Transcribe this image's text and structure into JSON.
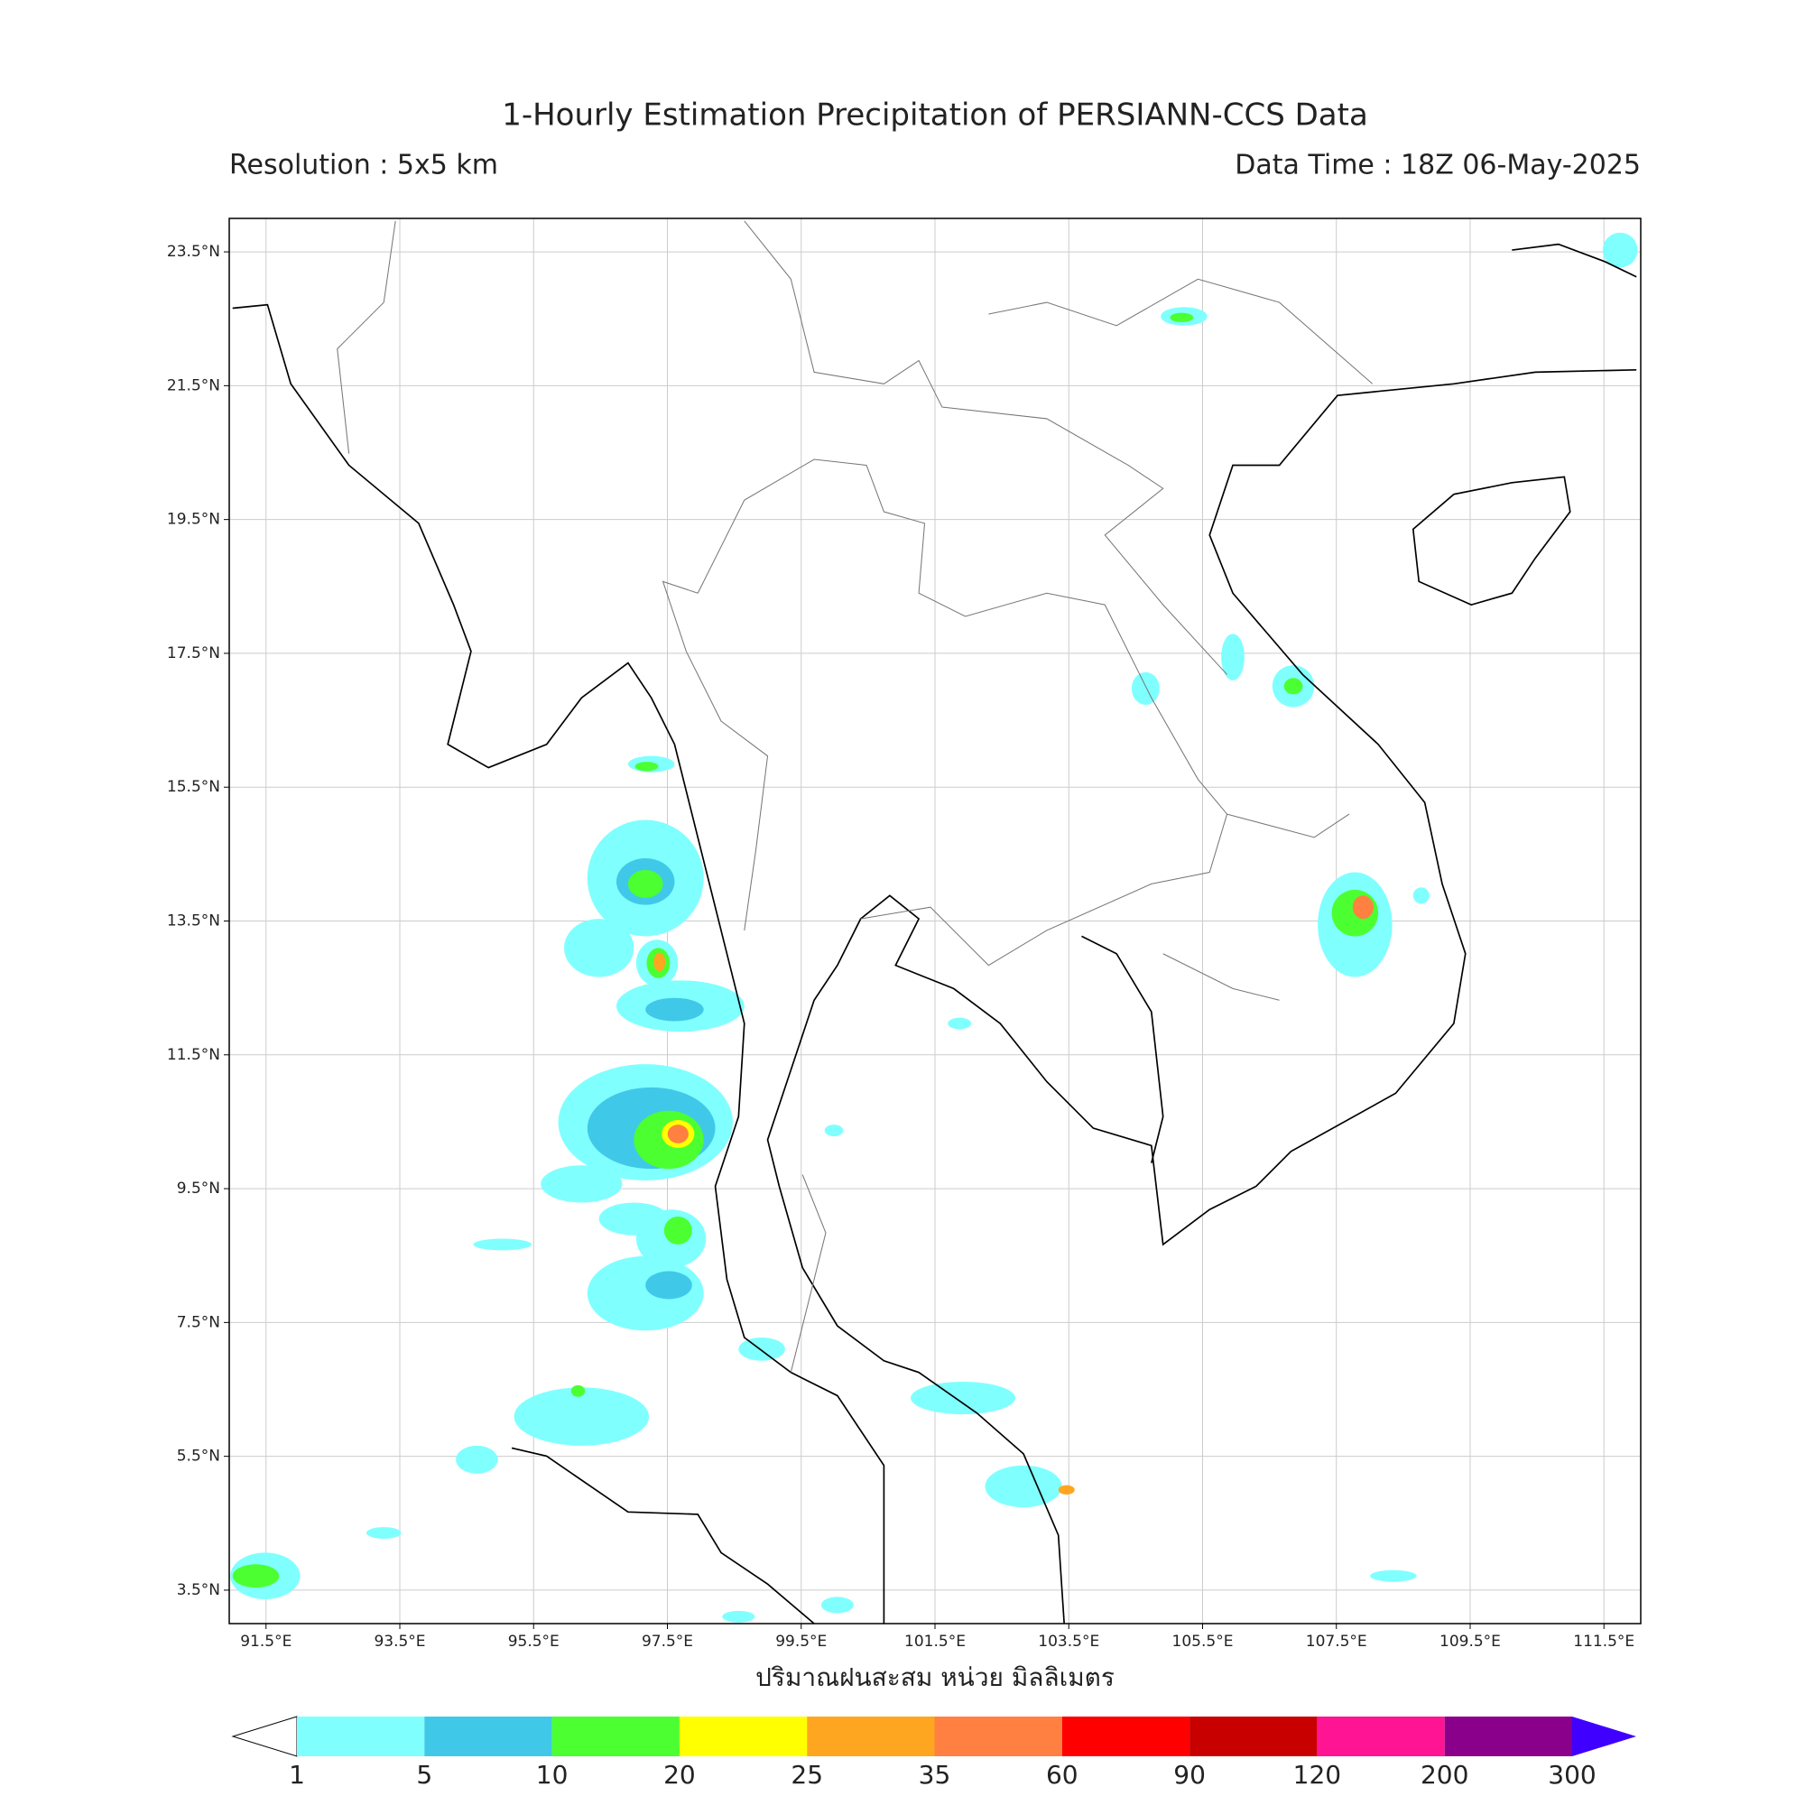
{
  "title": "1-Hourly Estimation Precipitation of PERSIANN-CCS Data",
  "resolution": "Resolution : 5x5 km",
  "data_time": "Data Time : 18Z 06-May-2025",
  "map": {
    "lonlim": [
      90.95,
      112.05
    ],
    "latlim": [
      3.0,
      24.0
    ],
    "lon_ticks": [
      {
        "value": 91.5,
        "label": "91.5°E"
      },
      {
        "value": 93.5,
        "label": "93.5°E"
      },
      {
        "value": 95.5,
        "label": "95.5°E"
      },
      {
        "value": 97.5,
        "label": "97.5°E"
      },
      {
        "value": 99.5,
        "label": "99.5°E"
      },
      {
        "value": 101.5,
        "label": "101.5°E"
      },
      {
        "value": 103.5,
        "label": "103.5°E"
      },
      {
        "value": 105.5,
        "label": "105.5°E"
      },
      {
        "value": 107.5,
        "label": "107.5°E"
      },
      {
        "value": 109.5,
        "label": "109.5°E"
      },
      {
        "value": 111.5,
        "label": "111.5°E"
      }
    ],
    "lat_ticks": [
      {
        "value": 23.5,
        "label": "23.5°N"
      },
      {
        "value": 21.5,
        "label": "21.5°N"
      },
      {
        "value": 19.5,
        "label": "19.5°N"
      },
      {
        "value": 17.5,
        "label": "17.5°N"
      },
      {
        "value": 15.5,
        "label": "15.5°N"
      },
      {
        "value": 13.5,
        "label": "13.5°N"
      },
      {
        "value": 11.5,
        "label": "11.5°N"
      },
      {
        "value": 9.5,
        "label": "9.5°N"
      },
      {
        "value": 7.5,
        "label": "7.5°N"
      },
      {
        "value": 5.5,
        "label": "5.5°N"
      },
      {
        "value": 3.5,
        "label": "3.5°N"
      }
    ],
    "grid": true
  },
  "axis_label": "ปริมาณฝนสะสม หน่วย มิลลิเมตร",
  "colorbar": {
    "levels": [
      1,
      5,
      10,
      20,
      25,
      35,
      60,
      90,
      120,
      200,
      300
    ],
    "colors": [
      "#80ffff",
      "#40c8e8",
      "#4cff30",
      "#ffff00",
      "#ffa620",
      "#ff8040",
      "#ff0000",
      "#c80000",
      "#ff1493",
      "#8b008b"
    ],
    "under_color": "#ffffff",
    "over_color": "#3f00ff"
  }
}
